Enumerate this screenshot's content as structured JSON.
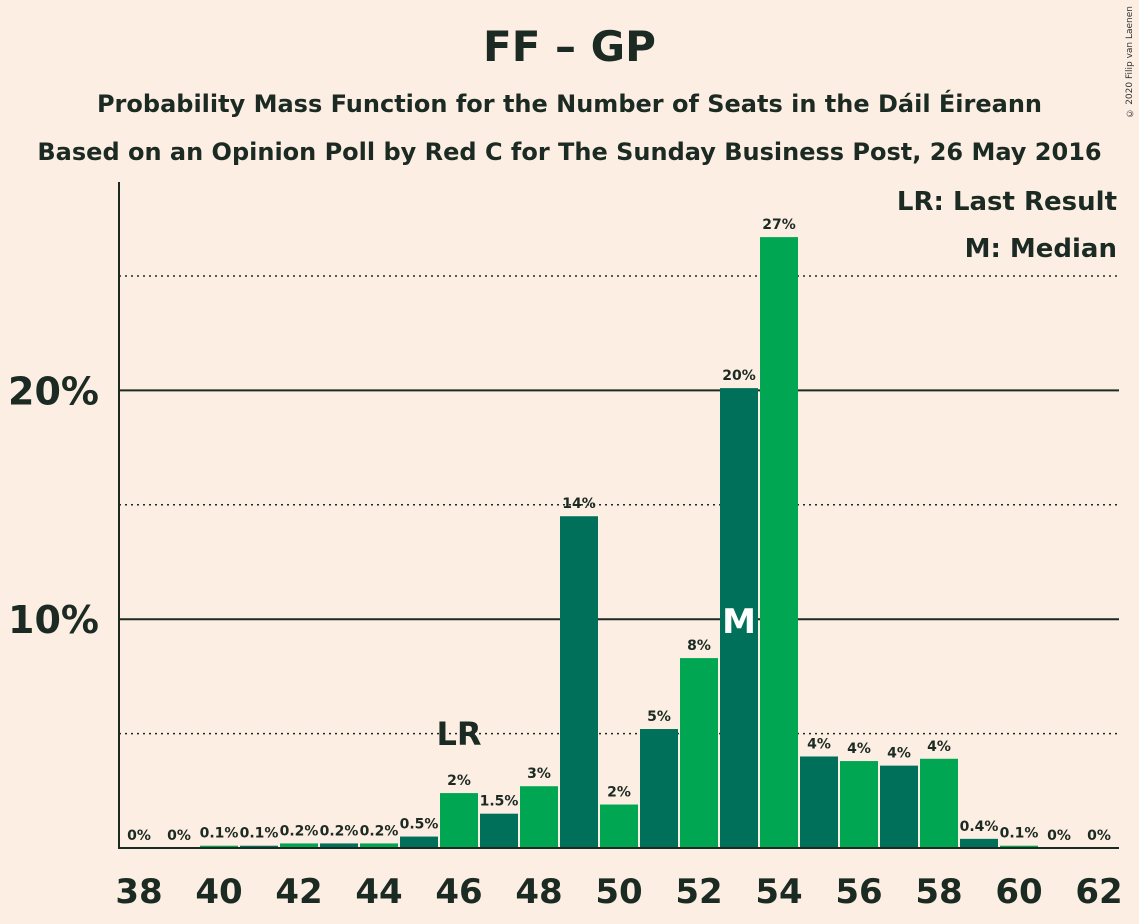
{
  "title": "FF – GP",
  "subtitle1": "Probability Mass Function for the Number of Seats in the Dáil Éireann",
  "subtitle2": "Based on an Opinion Poll by Red C for The Sunday Business Post, 26 May 2016",
  "copyright": "© 2020 Filip van Laenen",
  "legend": {
    "last_result": "LR: Last Result",
    "median": "M: Median"
  },
  "colors": {
    "background": "#fdeee3",
    "bar_dark": "#00705a",
    "bar_light": "#00a651",
    "text": "#1b2a22"
  },
  "chart_data": {
    "type": "bar",
    "title": "FF – GP",
    "xlabel": "",
    "ylabel": "",
    "ylim": [
      0,
      28
    ],
    "y_ticks_labeled": [
      10,
      20
    ],
    "y_tick_labels": [
      "10%",
      "20%"
    ],
    "y_dotted_lines": [
      5,
      15,
      25
    ],
    "x_tick_labels": [
      "38",
      "40",
      "42",
      "44",
      "46",
      "48",
      "50",
      "52",
      "54",
      "56",
      "58",
      "60",
      "62"
    ],
    "categories": [
      38,
      39,
      40,
      41,
      42,
      43,
      44,
      45,
      46,
      47,
      48,
      49,
      50,
      51,
      52,
      53,
      54,
      55,
      56,
      57,
      58,
      59,
      60,
      61,
      62
    ],
    "values": [
      0,
      0,
      0.1,
      0.1,
      0.2,
      0.2,
      0.2,
      0.5,
      2.4,
      1.5,
      2.7,
      14.5,
      1.9,
      5.2,
      8.3,
      20.1,
      26.7,
      4.0,
      3.8,
      3.6,
      3.9,
      0.4,
      0.1,
      0,
      0
    ],
    "value_labels": [
      "0%",
      "0%",
      "0.1%",
      "0.1%",
      "0.2%",
      "0.2%",
      "0.2%",
      "0.5%",
      "2%",
      "1.5%",
      "3%",
      "14%",
      "2%",
      "5%",
      "8%",
      "20%",
      "27%",
      "4%",
      "4%",
      "4%",
      "4%",
      "0.4%",
      "0.1%",
      "0%",
      "0%"
    ],
    "last_result": {
      "seat": 46,
      "label": "LR"
    },
    "median": {
      "seat": 53,
      "label": "M"
    },
    "grid": true,
    "legend_position": "top-right"
  }
}
